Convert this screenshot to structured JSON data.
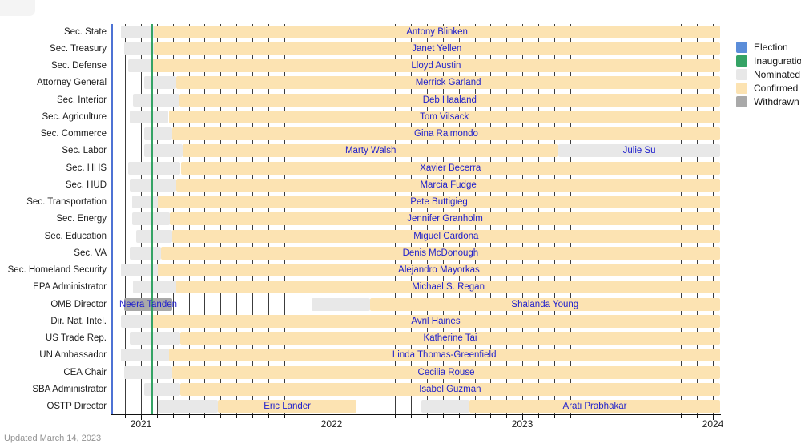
{
  "meta": {
    "updated_note": "Updated March 14, 2023"
  },
  "colors": {
    "election": "#4d72d4",
    "election_swatch": "#5b8dd9",
    "inauguration": "#35a365",
    "nominated": "#e8e8e8",
    "confirmed": "#fce3b2",
    "withdrawn": "#a9a9a9",
    "name_text": "#2121cc",
    "gridline": "#3c3c3c"
  },
  "legend": {
    "items": [
      {
        "key": "election_swatch",
        "label": "Election"
      },
      {
        "key": "inauguration",
        "label": "Inauguration"
      },
      {
        "key": "nominated",
        "label": "Nominated"
      },
      {
        "key": "confirmed",
        "label": "Confirmed"
      },
      {
        "key": "withdrawn",
        "label": "Withdrawn"
      }
    ]
  },
  "chart_data": {
    "type": "gantt",
    "x_axis": {
      "min": 2020.8446,
      "max": 2024.0379,
      "year_ticks": [
        {
          "label": "2021",
          "value": 2021
        },
        {
          "label": "2022",
          "value": 2022
        },
        {
          "label": "2023",
          "value": 2023
        },
        {
          "label": "2024",
          "value": 2024
        }
      ],
      "month_gridlines_start": 2020.9167,
      "month_gridlines_count": 38
    },
    "events": {
      "election_value": 2020.8485,
      "inauguration_value": 2021.058
    },
    "rows": [
      {
        "label": "Sec. State",
        "segments": [
          {
            "type": "nominated",
            "start": 2020.893,
            "end": 2021.068
          },
          {
            "type": "confirmed",
            "start": 2021.068,
            "end": 2024.0379
          }
        ],
        "names": [
          {
            "text": "Antony Blinken",
            "segment": 1
          }
        ]
      },
      {
        "label": "Sec. Treasury",
        "segments": [
          {
            "type": "nominated",
            "start": 2020.912,
            "end": 2021.066
          },
          {
            "type": "confirmed",
            "start": 2021.066,
            "end": 2024.0379
          }
        ],
        "names": [
          {
            "text": "Janet Yellen",
            "segment": 1
          }
        ]
      },
      {
        "label": "Sec. Defense",
        "segments": [
          {
            "type": "nominated",
            "start": 2020.934,
            "end": 2021.058
          },
          {
            "type": "confirmed",
            "start": 2021.058,
            "end": 2024.0379
          }
        ],
        "names": [
          {
            "text": "Lloyd Austin",
            "segment": 1
          }
        ]
      },
      {
        "label": "Attorney General",
        "segments": [
          {
            "type": "nominated",
            "start": 2021.016,
            "end": 2021.186
          },
          {
            "type": "confirmed",
            "start": 2021.186,
            "end": 2024.0379
          }
        ],
        "names": [
          {
            "text": "Merrick Garland",
            "segment": 1
          }
        ]
      },
      {
        "label": "Sec. Interior",
        "segments": [
          {
            "type": "nominated",
            "start": 2020.959,
            "end": 2021.2
          },
          {
            "type": "confirmed",
            "start": 2021.2,
            "end": 2024.0379
          }
        ],
        "names": [
          {
            "text": "Deb Haaland",
            "segment": 1
          }
        ]
      },
      {
        "label": "Sec. Agriculture",
        "segments": [
          {
            "type": "nominated",
            "start": 2020.94,
            "end": 2021.145
          },
          {
            "type": "confirmed",
            "start": 2021.145,
            "end": 2024.0379
          }
        ],
        "names": [
          {
            "text": "Tom Vilsack",
            "segment": 1
          }
        ]
      },
      {
        "label": "Sec. Commerce",
        "segments": [
          {
            "type": "nominated",
            "start": 2021.016,
            "end": 2021.164
          },
          {
            "type": "confirmed",
            "start": 2021.164,
            "end": 2024.0379
          }
        ],
        "names": [
          {
            "text": "Gina Raimondo",
            "segment": 1
          }
        ]
      },
      {
        "label": "Sec. Labor",
        "segments": [
          {
            "type": "nominated",
            "start": 2021.016,
            "end": 2021.219
          },
          {
            "type": "confirmed",
            "start": 2021.219,
            "end": 2023.19
          },
          {
            "type": "nominated",
            "start": 2023.19,
            "end": 2024.0379
          }
        ],
        "names": [
          {
            "text": "Marty Walsh",
            "segment": 1
          },
          {
            "text": "Julie Su",
            "segment": 2
          }
        ]
      },
      {
        "label": "Sec. HHS",
        "segments": [
          {
            "type": "nominated",
            "start": 2020.932,
            "end": 2021.208
          },
          {
            "type": "confirmed",
            "start": 2021.208,
            "end": 2024.0379
          }
        ],
        "names": [
          {
            "text": "Xavier Becerra",
            "segment": 1
          }
        ]
      },
      {
        "label": "Sec. HUD",
        "segments": [
          {
            "type": "nominated",
            "start": 2020.94,
            "end": 2021.186
          },
          {
            "type": "confirmed",
            "start": 2021.186,
            "end": 2024.0379
          }
        ],
        "names": [
          {
            "text": "Marcia Fudge",
            "segment": 1
          }
        ]
      },
      {
        "label": "Sec. Transportation",
        "segments": [
          {
            "type": "nominated",
            "start": 2020.953,
            "end": 2021.088
          },
          {
            "type": "confirmed",
            "start": 2021.088,
            "end": 2024.0379
          }
        ],
        "names": [
          {
            "text": "Pete Buttigieg",
            "segment": 1
          }
        ]
      },
      {
        "label": "Sec. Energy",
        "segments": [
          {
            "type": "nominated",
            "start": 2020.953,
            "end": 2021.151
          },
          {
            "type": "confirmed",
            "start": 2021.151,
            "end": 2024.0379
          }
        ],
        "names": [
          {
            "text": "Jennifer Granholm",
            "segment": 1
          }
        ]
      },
      {
        "label": "Sec. Education",
        "segments": [
          {
            "type": "nominated",
            "start": 2020.973,
            "end": 2021.162
          },
          {
            "type": "confirmed",
            "start": 2021.162,
            "end": 2024.0379
          }
        ],
        "names": [
          {
            "text": "Miguel Cardona",
            "segment": 1
          }
        ]
      },
      {
        "label": "Sec. VA",
        "segments": [
          {
            "type": "nominated",
            "start": 2020.94,
            "end": 2021.104
          },
          {
            "type": "confirmed",
            "start": 2021.104,
            "end": 2024.0379
          }
        ],
        "names": [
          {
            "text": "Denis McDonough",
            "segment": 1
          }
        ]
      },
      {
        "label": "Sec. Homeland Security",
        "segments": [
          {
            "type": "nominated",
            "start": 2020.893,
            "end": 2021.088
          },
          {
            "type": "confirmed",
            "start": 2021.088,
            "end": 2024.0379
          }
        ],
        "names": [
          {
            "text": "Alejandro Mayorkas",
            "segment": 1
          }
        ]
      },
      {
        "label": "EPA Administrator",
        "segments": [
          {
            "type": "nominated",
            "start": 2020.959,
            "end": 2021.186
          },
          {
            "type": "confirmed",
            "start": 2021.186,
            "end": 2024.0379
          }
        ],
        "names": [
          {
            "text": "Michael S. Regan",
            "segment": 1
          }
        ]
      },
      {
        "label": "OMB Director",
        "segments": [
          {
            "type": "withdrawn",
            "start": 2020.912,
            "end": 2021.164
          },
          {
            "type": "nominated",
            "start": 2021.896,
            "end": 2022.2
          },
          {
            "type": "confirmed",
            "start": 2022.2,
            "end": 2024.0379
          }
        ],
        "names": [
          {
            "text": "Neera Tanden",
            "segment": 0
          },
          {
            "text": "Shalanda Young",
            "segment": 2
          }
        ]
      },
      {
        "label": "Dir. Nat. Intel.",
        "segments": [
          {
            "type": "nominated",
            "start": 2020.893,
            "end": 2021.055
          },
          {
            "type": "confirmed",
            "start": 2021.055,
            "end": 2024.0379
          }
        ],
        "names": [
          {
            "text": "Avril Haines",
            "segment": 1
          }
        ]
      },
      {
        "label": "US Trade Rep.",
        "segments": [
          {
            "type": "nominated",
            "start": 2020.94,
            "end": 2021.206
          },
          {
            "type": "confirmed",
            "start": 2021.206,
            "end": 2024.0379
          }
        ],
        "names": [
          {
            "text": "Katherine Tai",
            "segment": 1
          }
        ]
      },
      {
        "label": "UN Ambassador",
        "segments": [
          {
            "type": "nominated",
            "start": 2020.893,
            "end": 2021.145
          },
          {
            "type": "confirmed",
            "start": 2021.145,
            "end": 2024.0379
          }
        ],
        "names": [
          {
            "text": "Linda Thomas-Greenfield",
            "segment": 1
          }
        ]
      },
      {
        "label": "CEA Chair",
        "segments": [
          {
            "type": "nominated",
            "start": 2020.912,
            "end": 2021.164
          },
          {
            "type": "confirmed",
            "start": 2021.164,
            "end": 2024.0379
          }
        ],
        "names": [
          {
            "text": "Cecilia Rouse",
            "segment": 1
          }
        ]
      },
      {
        "label": "SBA Administrator",
        "segments": [
          {
            "type": "nominated",
            "start": 2021.016,
            "end": 2021.205
          },
          {
            "type": "confirmed",
            "start": 2021.205,
            "end": 2024.0379
          }
        ],
        "names": [
          {
            "text": "Isabel Guzman",
            "segment": 1
          }
        ]
      },
      {
        "label": "OSTP Director",
        "segments": [
          {
            "type": "nominated",
            "start": 2021.088,
            "end": 2021.403
          },
          {
            "type": "confirmed",
            "start": 2021.403,
            "end": 2022.132
          },
          {
            "type": "nominated",
            "start": 2022.469,
            "end": 2022.723
          },
          {
            "type": "confirmed",
            "start": 2022.723,
            "end": 2024.0379
          }
        ],
        "names": [
          {
            "text": "Eric Lander",
            "segment": 1
          },
          {
            "text": "Arati Prabhakar",
            "segment": 3
          }
        ]
      }
    ]
  }
}
